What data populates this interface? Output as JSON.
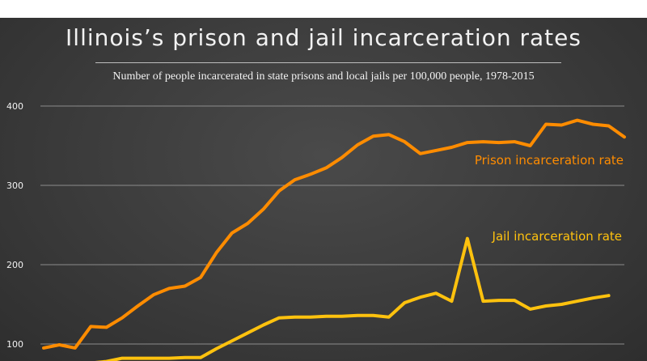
{
  "chart_data": {
    "type": "line",
    "title": "Illinois’s prison and jail incarceration rates",
    "subtitle": "Number of people incarcerated in state prisons and local jails per 100,000 people, 1978-2015",
    "y_ticks": [
      "100",
      "200",
      "300",
      "400"
    ],
    "ylim": [
      85,
      420
    ],
    "xlim": [
      1978,
      2015
    ],
    "grid": true,
    "series": [
      {
        "name": "Prison incarceration rate",
        "color": "#ff8c00",
        "x": [
          1978,
          1979,
          1980,
          1981,
          1982,
          1983,
          1984,
          1985,
          1986,
          1987,
          1988,
          1989,
          1990,
          1991,
          1992,
          1993,
          1994,
          1995,
          1996,
          1997,
          1998,
          1999,
          2000,
          2001,
          2002,
          2003,
          2004,
          2005,
          2006,
          2007,
          2008,
          2009,
          2010,
          2011,
          2012,
          2013,
          2014,
          2015
        ],
        "values": [
          95,
          99,
          95,
          122,
          121,
          133,
          148,
          162,
          170,
          173,
          184,
          215,
          240,
          252,
          270,
          293,
          307,
          314,
          322,
          335,
          351,
          362,
          364,
          355,
          340,
          344,
          348,
          354,
          355,
          354,
          355,
          350,
          377,
          376,
          382,
          377,
          375,
          361
        ]
      },
      {
        "name": "Jail incarceration rate",
        "color": "#ffc20e",
        "x": [
          1978,
          1979,
          1980,
          1981,
          1982,
          1983,
          1984,
          1985,
          1986,
          1987,
          1988,
          1989,
          1990,
          1991,
          1992,
          1993,
          1994,
          1995,
          1996,
          1997,
          1998,
          1999,
          2000,
          2001,
          2002,
          2003,
          2004,
          2005,
          2006,
          2007,
          2008,
          2009,
          2010,
          2011,
          2012,
          2013,
          2014
        ],
        "values": [
          70,
          72,
          74,
          76,
          78,
          82,
          82,
          82,
          82,
          83,
          83,
          94,
          104,
          114,
          124,
          133,
          134,
          134,
          135,
          135,
          136,
          136,
          134,
          152,
          159,
          164,
          154,
          233,
          154,
          155,
          155,
          144,
          148,
          150,
          154,
          158,
          161
        ]
      }
    ]
  }
}
